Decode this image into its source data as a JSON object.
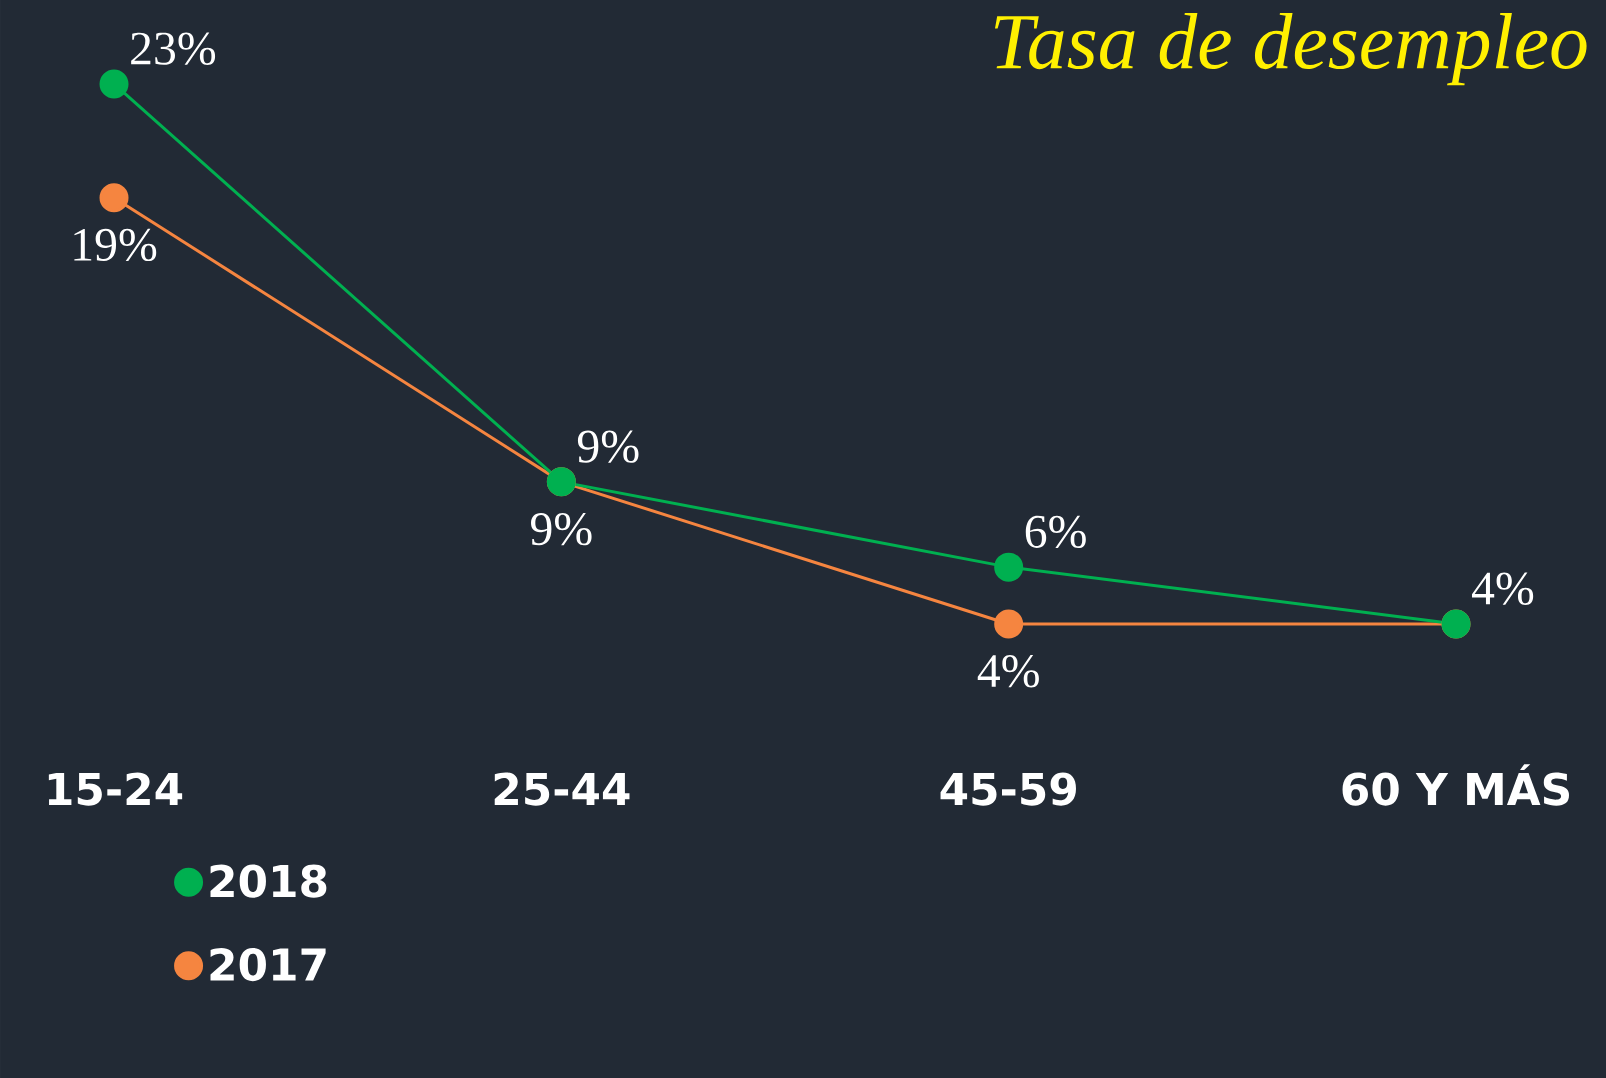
{
  "chart_data": {
    "type": "line",
    "title": "Tasa de desempleo",
    "categories": [
      "15-24",
      "25-44",
      "45-59",
      "60 Y MÁS"
    ],
    "series": [
      {
        "name": "2018",
        "color": "#00b050",
        "values": [
          23,
          9,
          6,
          4
        ],
        "value_labels": [
          "23%",
          "9%",
          "6%",
          "4%"
        ]
      },
      {
        "name": "2017",
        "color": "#f58540",
        "values": [
          19,
          9,
          4,
          4
        ],
        "value_labels": [
          "19%",
          "9%",
          "4%",
          null
        ]
      }
    ],
    "marker": "circle",
    "line_style": "solid",
    "legend": "bottom left"
  }
}
